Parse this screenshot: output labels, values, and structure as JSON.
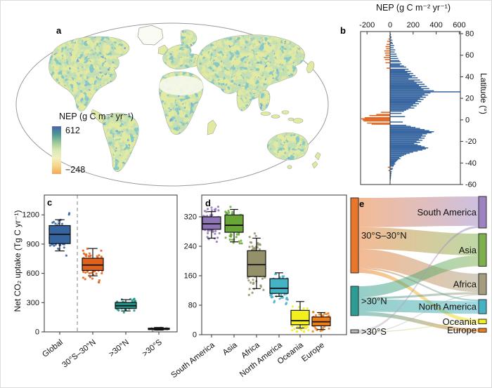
{
  "figure": {
    "panels": {
      "a": "a",
      "b": "b",
      "c": "c",
      "d": "d",
      "e": "e"
    }
  },
  "map": {
    "legend_title": "NEP (g C m⁻² yr⁻¹)",
    "legend_max": "612",
    "legend_min": "−248",
    "colorbar_colors": [
      "#5061a8",
      "#4b9894",
      "#98c795",
      "#d9e8b5",
      "#f3efc0",
      "#f6d488",
      "#f2a854"
    ]
  },
  "chart_data": [
    {
      "id": "b",
      "type": "bar",
      "name": "panel-b-latitude-profile",
      "title": "NEP (g C m⁻² yr⁻¹)",
      "ylabel": "Latitude (°)",
      "xticks": [
        -200,
        0,
        200,
        400,
        600
      ],
      "yticks": [
        80,
        60,
        40,
        20,
        0,
        -20,
        -40,
        -60
      ],
      "xlim": [
        -260,
        615
      ],
      "ylim": [
        -60,
        82
      ],
      "colors": {
        "positive": "#35649f",
        "negative": "#e2611a"
      },
      "lat_start": 80,
      "lat_step": -1,
      "values": [
        5,
        8,
        -6,
        12,
        10,
        -15,
        20,
        -25,
        18,
        25,
        -30,
        35,
        -40,
        30,
        -35,
        45,
        -50,
        40,
        -45,
        55,
        -40,
        60,
        -55,
        70,
        -45,
        80,
        90,
        -40,
        100,
        85,
        120,
        140,
        -30,
        160,
        130,
        180,
        150,
        200,
        170,
        220,
        190,
        240,
        160,
        260,
        210,
        280,
        230,
        300,
        250,
        320,
        270,
        340,
        290,
        380,
        610,
        350,
        300,
        330,
        280,
        310,
        260,
        290,
        240,
        270,
        220,
        250,
        200,
        230,
        180,
        210,
        160,
        140,
        120,
        -80,
        100,
        -120,
        -180,
        130,
        -220,
        -250,
        -240,
        -230,
        110,
        -200,
        -160,
        140,
        180,
        220,
        260,
        300,
        340,
        380,
        360,
        320,
        280,
        310,
        270,
        300,
        250,
        280,
        230,
        260,
        210,
        240,
        270,
        300,
        330,
        310,
        280,
        240,
        200,
        170,
        140,
        120,
        100,
        80,
        90,
        70,
        60,
        50,
        40,
        45,
        35,
        30,
        -20,
        25,
        20,
        -15,
        15,
        10,
        12,
        8,
        10,
        6,
        8,
        5,
        4
      ]
    },
    {
      "id": "c",
      "type": "box",
      "name": "panel-c-latband-boxplot",
      "ylabel": "Net CO₂ uptake (Tg C yr⁻¹)",
      "categories": [
        "Global",
        "30°S–30°N",
        ">30°N",
        ">30°S"
      ],
      "yticks": [
        0,
        300,
        600,
        900,
        1200
      ],
      "ylim": [
        0,
        1400
      ],
      "colors": [
        "#35649f",
        "#e2611a",
        "#1d9489",
        "#8c8c8c"
      ],
      "boxes": [
        {
          "whislo": 830,
          "q1": 905,
          "med": 1000,
          "q3": 1090,
          "whishi": 1150
        },
        {
          "whislo": 575,
          "q1": 630,
          "med": 685,
          "q3": 755,
          "whishi": 855
        },
        {
          "whislo": 215,
          "q1": 240,
          "med": 268,
          "q3": 302,
          "whishi": 330
        },
        {
          "whislo": 18,
          "q1": 25,
          "med": 30,
          "q3": 38,
          "whishi": 45
        }
      ]
    },
    {
      "id": "d",
      "type": "box",
      "name": "panel-d-continent-boxplot",
      "categories": [
        "South America",
        "Asia",
        "Africa",
        "North America",
        "Oceania",
        "Europe"
      ],
      "yticks": [
        0,
        80,
        160,
        240,
        320
      ],
      "ylim": [
        0,
        380
      ],
      "colors": [
        "#8f74b5",
        "#6aa636",
        "#93906a",
        "#45b3c4",
        "#f2ef1c",
        "#ef7d17"
      ],
      "boxes": [
        {
          "whislo": 262,
          "q1": 286,
          "med": 301,
          "q3": 320,
          "whishi": 334
        },
        {
          "whislo": 252,
          "q1": 278,
          "med": 297,
          "q3": 325,
          "whishi": 340
        },
        {
          "whislo": 125,
          "q1": 158,
          "med": 190,
          "q3": 228,
          "whishi": 262
        },
        {
          "whislo": 104,
          "q1": 112,
          "med": 126,
          "q3": 152,
          "whishi": 168
        },
        {
          "whislo": 18,
          "q1": 27,
          "med": 38,
          "q3": 66,
          "whishi": 90
        },
        {
          "whislo": 14,
          "q1": 24,
          "med": 35,
          "q3": 48,
          "whishi": 60
        }
      ]
    },
    {
      "id": "e",
      "type": "sankey",
      "name": "panel-e-sankey",
      "left_nodes": [
        {
          "label": "30°S–30°N",
          "color": "#e8772c",
          "value": 690
        },
        {
          "label": ">30°N",
          "color": "#2b9d94",
          "value": 270
        },
        {
          "label": ">30°S",
          "color": "#b9b9b9",
          "value": 30
        }
      ],
      "right_nodes": [
        {
          "label": "South America",
          "color": "#9d83c0",
          "value": 290
        },
        {
          "label": "Asia",
          "color": "#7db04c",
          "value": 300
        },
        {
          "label": "Africa",
          "color": "#a59e7e",
          "value": 193
        },
        {
          "label": "North America",
          "color": "#45b3c4",
          "value": 130
        },
        {
          "label": "Oceania",
          "color": "#f2ef1c",
          "value": 42
        },
        {
          "label": "Europe",
          "color": "#ef7d17",
          "value": 35
        }
      ],
      "flows": [
        {
          "source": 0,
          "target": 0,
          "value": 270
        },
        {
          "source": 0,
          "target": 1,
          "value": 200
        },
        {
          "source": 0,
          "target": 2,
          "value": 170
        },
        {
          "source": 0,
          "target": 3,
          "value": 15
        },
        {
          "source": 0,
          "target": 4,
          "value": 35
        },
        {
          "source": 1,
          "target": 1,
          "value": 100
        },
        {
          "source": 1,
          "target": 2,
          "value": 20
        },
        {
          "source": 1,
          "target": 3,
          "value": 115
        },
        {
          "source": 1,
          "target": 5,
          "value": 35
        },
        {
          "source": 2,
          "target": 0,
          "value": 20
        },
        {
          "source": 2,
          "target": 4,
          "value": 7
        },
        {
          "source": 2,
          "target": 2,
          "value": 3
        }
      ]
    }
  ]
}
